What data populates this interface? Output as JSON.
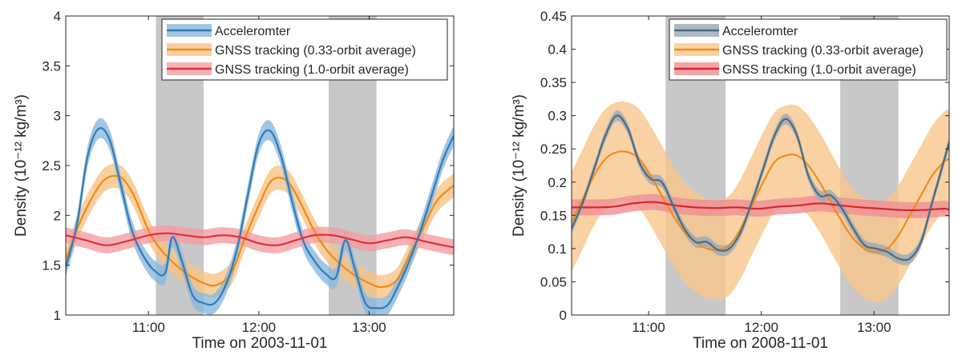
{
  "chart_data": [
    {
      "type": "line",
      "xlabel": "Time on 2003-11-01",
      "ylabel": "Density (10⁻¹² kg/m³)",
      "xlim": [
        "10:15",
        "13:46"
      ],
      "ylim": [
        1,
        4
      ],
      "xticks": [
        "11:00",
        "12:00",
        "13:00"
      ],
      "yticks": [
        "1",
        "1.5",
        "2",
        "2.5",
        "3",
        "3.5",
        "4"
      ],
      "grid": false,
      "legend_position": "top-right",
      "shaded_intervals": [
        [
          "11:04",
          "11:30"
        ],
        [
          "12:38",
          "13:04"
        ]
      ],
      "series": [
        {
          "name": "Accelerometer",
          "legend_label": "Acceleromter",
          "color": "#2e7bb8",
          "band_color": "#8ab8dd",
          "x": [
            "10:15",
            "10:21",
            "10:27",
            "10:33",
            "10:39",
            "10:45",
            "10:51",
            "10:57",
            "11:03",
            "11:09",
            "11:13",
            "11:18",
            "11:24",
            "11:30",
            "11:36",
            "11:42",
            "11:48",
            "11:54",
            "12:00",
            "12:06",
            "12:12",
            "12:18",
            "12:24",
            "12:30",
            "12:36",
            "12:42",
            "12:47",
            "12:52",
            "12:58",
            "13:04",
            "13:10",
            "13:16",
            "13:22",
            "13:28",
            "13:34",
            "13:40",
            "13:46"
          ],
          "y": [
            1.48,
            1.9,
            2.6,
            2.87,
            2.75,
            2.3,
            1.85,
            1.6,
            1.45,
            1.42,
            1.78,
            1.55,
            1.2,
            1.12,
            1.12,
            1.3,
            1.65,
            2.2,
            2.72,
            2.85,
            2.6,
            2.15,
            1.75,
            1.55,
            1.42,
            1.38,
            1.75,
            1.48,
            1.12,
            1.07,
            1.1,
            1.3,
            1.55,
            1.85,
            2.2,
            2.55,
            2.8
          ],
          "band": 0.1
        },
        {
          "name": "GNSS tracking (0.33-orbit average)",
          "color": "#ef8a17",
          "band_color": "#f8c384",
          "x": [
            "10:15",
            "10:22",
            "10:30",
            "10:37",
            "10:45",
            "10:52",
            "11:00",
            "11:07",
            "11:15",
            "11:22",
            "11:30",
            "11:37",
            "11:45",
            "11:52",
            "12:00",
            "12:07",
            "12:15",
            "12:22",
            "12:30",
            "12:37",
            "12:45",
            "12:52",
            "13:00",
            "13:07",
            "13:15",
            "13:22",
            "13:30",
            "13:37",
            "13:46"
          ],
          "y": [
            1.55,
            1.9,
            2.2,
            2.37,
            2.38,
            2.2,
            1.85,
            1.65,
            1.5,
            1.4,
            1.32,
            1.3,
            1.42,
            1.75,
            2.1,
            2.35,
            2.35,
            2.15,
            1.85,
            1.65,
            1.5,
            1.4,
            1.32,
            1.28,
            1.35,
            1.6,
            1.9,
            2.15,
            2.3
          ],
          "band": 0.12
        },
        {
          "name": "GNSS tracking (1.0-orbit average)",
          "color": "#e0303a",
          "band_color": "#f29da2",
          "x": [
            "10:15",
            "10:26",
            "10:37",
            "10:48",
            "11:00",
            "11:10",
            "11:20",
            "11:30",
            "11:40",
            "11:50",
            "12:00",
            "12:10",
            "12:20",
            "12:30",
            "12:40",
            "12:50",
            "13:00",
            "13:10",
            "13:20",
            "13:30",
            "13:40",
            "13:46"
          ],
          "y": [
            1.8,
            1.75,
            1.7,
            1.74,
            1.8,
            1.82,
            1.8,
            1.78,
            1.8,
            1.78,
            1.72,
            1.7,
            1.75,
            1.8,
            1.8,
            1.76,
            1.72,
            1.75,
            1.78,
            1.74,
            1.7,
            1.68
          ],
          "band": 0.08
        }
      ]
    },
    {
      "type": "line",
      "xlabel": "Time on 2008-11-01",
      "ylabel": "Density (10⁻¹² kg/m³)",
      "xlim": [
        "10:19",
        "13:40"
      ],
      "ylim": [
        0,
        0.45
      ],
      "xticks": [
        "11:00",
        "12:00",
        "13:00"
      ],
      "yticks": [
        "0",
        "0.05",
        "0.1",
        "0.15",
        "0.2",
        "0.25",
        "0.3",
        "0.35",
        "0.4",
        "0.45"
      ],
      "grid": false,
      "legend_position": "top-right",
      "shaded_intervals": [
        [
          "11:09",
          "11:41"
        ],
        [
          "12:42",
          "13:13"
        ]
      ],
      "series": [
        {
          "name": "Accelerometer",
          "legend_label": "Acceleromter",
          "color": "#4c6a80",
          "band_color": "#9aa9b4",
          "x": [
            "10:19",
            "10:25",
            "10:31",
            "10:37",
            "10:43",
            "10:49",
            "10:55",
            "11:01",
            "11:07",
            "11:13",
            "11:19",
            "11:25",
            "11:31",
            "11:37",
            "11:43",
            "11:49",
            "11:55",
            "12:01",
            "12:07",
            "12:13",
            "12:19",
            "12:25",
            "12:31",
            "12:37",
            "12:43",
            "12:49",
            "12:55",
            "13:01",
            "13:07",
            "13:13",
            "13:19",
            "13:25",
            "13:31",
            "13:37",
            "13:40"
          ],
          "y": [
            0.13,
            0.17,
            0.22,
            0.27,
            0.3,
            0.28,
            0.23,
            0.205,
            0.2,
            0.165,
            0.13,
            0.11,
            0.11,
            0.098,
            0.1,
            0.125,
            0.17,
            0.22,
            0.27,
            0.295,
            0.27,
            0.21,
            0.18,
            0.18,
            0.16,
            0.13,
            0.105,
            0.1,
            0.095,
            0.085,
            0.085,
            0.11,
            0.17,
            0.23,
            0.26
          ],
          "band": 0.008
        },
        {
          "name": "GNSS tracking (0.33-orbit average)",
          "color": "#f08c1c",
          "band_color": "#f9c68c",
          "x": [
            "10:19",
            "10:25",
            "10:31",
            "10:37",
            "10:43",
            "10:49",
            "10:55",
            "11:01",
            "11:07",
            "11:13",
            "11:19",
            "11:25",
            "11:31",
            "11:37",
            "11:43",
            "11:49",
            "11:55",
            "12:01",
            "12:07",
            "12:13",
            "12:19",
            "12:25",
            "12:31",
            "12:37",
            "12:43",
            "12:49",
            "12:55",
            "13:01",
            "13:07",
            "13:13",
            "13:19",
            "13:25",
            "13:31",
            "13:37",
            "13:40"
          ],
          "y": [
            0.14,
            0.175,
            0.21,
            0.235,
            0.245,
            0.245,
            0.235,
            0.21,
            0.18,
            0.15,
            0.125,
            0.11,
            0.1,
            0.098,
            0.105,
            0.13,
            0.165,
            0.2,
            0.23,
            0.24,
            0.24,
            0.225,
            0.2,
            0.17,
            0.14,
            0.115,
            0.1,
            0.095,
            0.1,
            0.12,
            0.15,
            0.18,
            0.21,
            0.23,
            0.235
          ],
          "band": 0.075
        },
        {
          "name": "GNSS tracking (1.0-orbit average)",
          "color": "#d6262e",
          "band_color": "#ef8f93",
          "x": [
            "10:19",
            "10:30",
            "10:41",
            "10:52",
            "11:03",
            "11:14",
            "11:25",
            "11:36",
            "11:47",
            "11:58",
            "12:09",
            "12:20",
            "12:31",
            "12:42",
            "12:53",
            "13:04",
            "13:15",
            "13:26",
            "13:37",
            "13:40"
          ],
          "y": [
            0.162,
            0.162,
            0.163,
            0.168,
            0.17,
            0.165,
            0.162,
            0.161,
            0.162,
            0.16,
            0.163,
            0.165,
            0.168,
            0.165,
            0.162,
            0.16,
            0.158,
            0.158,
            0.16,
            0.158
          ],
          "band": 0.012
        }
      ]
    }
  ]
}
